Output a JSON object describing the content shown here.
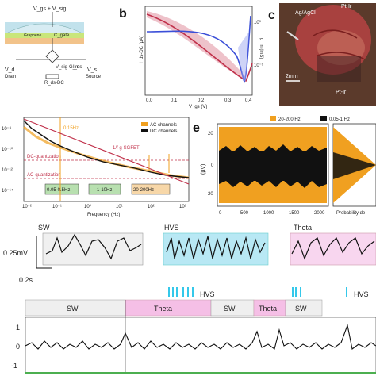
{
  "panel_letters": {
    "b": "b",
    "c": "c",
    "e": "e"
  },
  "panel_a": {
    "top": "V_gs + V_sig",
    "graphene": "Graphene",
    "cgate": "C_gate",
    "gm": "V_sig·G_m",
    "rds": "R_ds-DC",
    "drain": "V_d",
    "drain_sub": "Drain",
    "source": "V_s",
    "source_sub": "Source",
    "ids": "I_ds"
  },
  "panel_b": {
    "ylabel_left": "I_ds-DC (µA)",
    "ylabel_right": "g_m (mS)",
    "xlabel": "V_gs (V)",
    "xticks": [
      "0.0",
      "0.1",
      "0.2",
      "0.3",
      "0.4"
    ],
    "yticks_right": [
      "10⁰",
      "10⁻¹"
    ],
    "colors": {
      "ids": "#c0304a",
      "gm": "#3b4fd8"
    }
  },
  "panel_c": {
    "electrode_ref": "Ag/AgCl",
    "electrode_top": "Pt-Ir",
    "electrode_bottom": "Pt-Ir",
    "scale": "2mm"
  },
  "panel_d": {
    "freq_marker": "0.15Hz",
    "legend_ac": "AC channels",
    "legend_dc": "DC channels",
    "fit_label": "1/f g-SGFET",
    "dc_quant": "DC-quantization",
    "ac_quant": "AC-quantization",
    "band1": "0.05-0.5Hz",
    "band2": "1-10Hz",
    "band3": "20-200Hz",
    "xlabel": "Frequency (Hz)",
    "yticks": [
      "10⁻⁸",
      "10⁻¹⁰",
      "10⁻¹²",
      "10⁻¹⁴"
    ],
    "xticks": [
      "10⁻²",
      "10⁻¹",
      "10⁰",
      "10¹",
      "10²",
      "10³"
    ]
  },
  "panel_e": {
    "legend1": "20-200 Hz",
    "legend2": "0.05-1 Hz",
    "ylabel": "(µV)",
    "yticks": [
      "20",
      "0",
      "-20"
    ],
    "xticks": [
      "0",
      "500",
      "1000",
      "1500",
      "2000"
    ],
    "prob_label": "Probability de",
    "colors": {
      "orange": "#f0a020",
      "black": "#111111"
    }
  },
  "snippets": {
    "sw": "SW",
    "hvs": "HVS",
    "theta": "Theta",
    "scale_v": "0.25mV",
    "scale_t": "0.2s"
  },
  "timeline": {
    "states": [
      "SW",
      "Theta",
      "SW",
      "Theta",
      "SW"
    ],
    "hvs_1": "HVS",
    "hvs_2": "HVS",
    "yticks": [
      "1",
      "0",
      "-1"
    ],
    "colors": {
      "sw": "#e8e8e8",
      "theta": "#f5bfe6",
      "hvs": "#35c8ea"
    }
  }
}
